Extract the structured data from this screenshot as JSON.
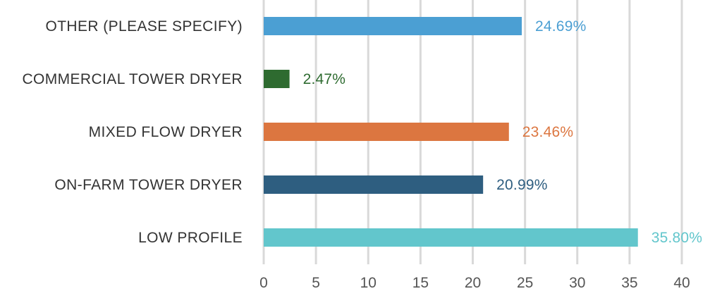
{
  "chart_data": {
    "type": "bar",
    "orientation": "horizontal",
    "title": "",
    "xlabel": "",
    "ylabel": "",
    "categories": [
      "OTHER (PLEASE SPECIFY)",
      "COMMERCIAL TOWER DRYER",
      "MIXED FLOW DRYER",
      "ON-FARM TOWER DRYER",
      "LOW PROFILE"
    ],
    "values": [
      24.69,
      2.47,
      23.46,
      20.99,
      35.8
    ],
    "value_labels": [
      "24.69%",
      "2.47%",
      "23.46%",
      "20.99%",
      "35.80%"
    ],
    "colors": [
      "#4b9fd3",
      "#2e6b30",
      "#dc7640",
      "#2e5e80",
      "#62c6cc"
    ],
    "xlim": [
      0,
      40
    ],
    "x_ticks": [
      0,
      5,
      10,
      15,
      20,
      25,
      30,
      35,
      40
    ],
    "x_tick_labels": [
      "0",
      "5",
      "10",
      "15",
      "20",
      "25",
      "30",
      "35",
      "40"
    ],
    "grid": "vertical",
    "legend": "none"
  }
}
